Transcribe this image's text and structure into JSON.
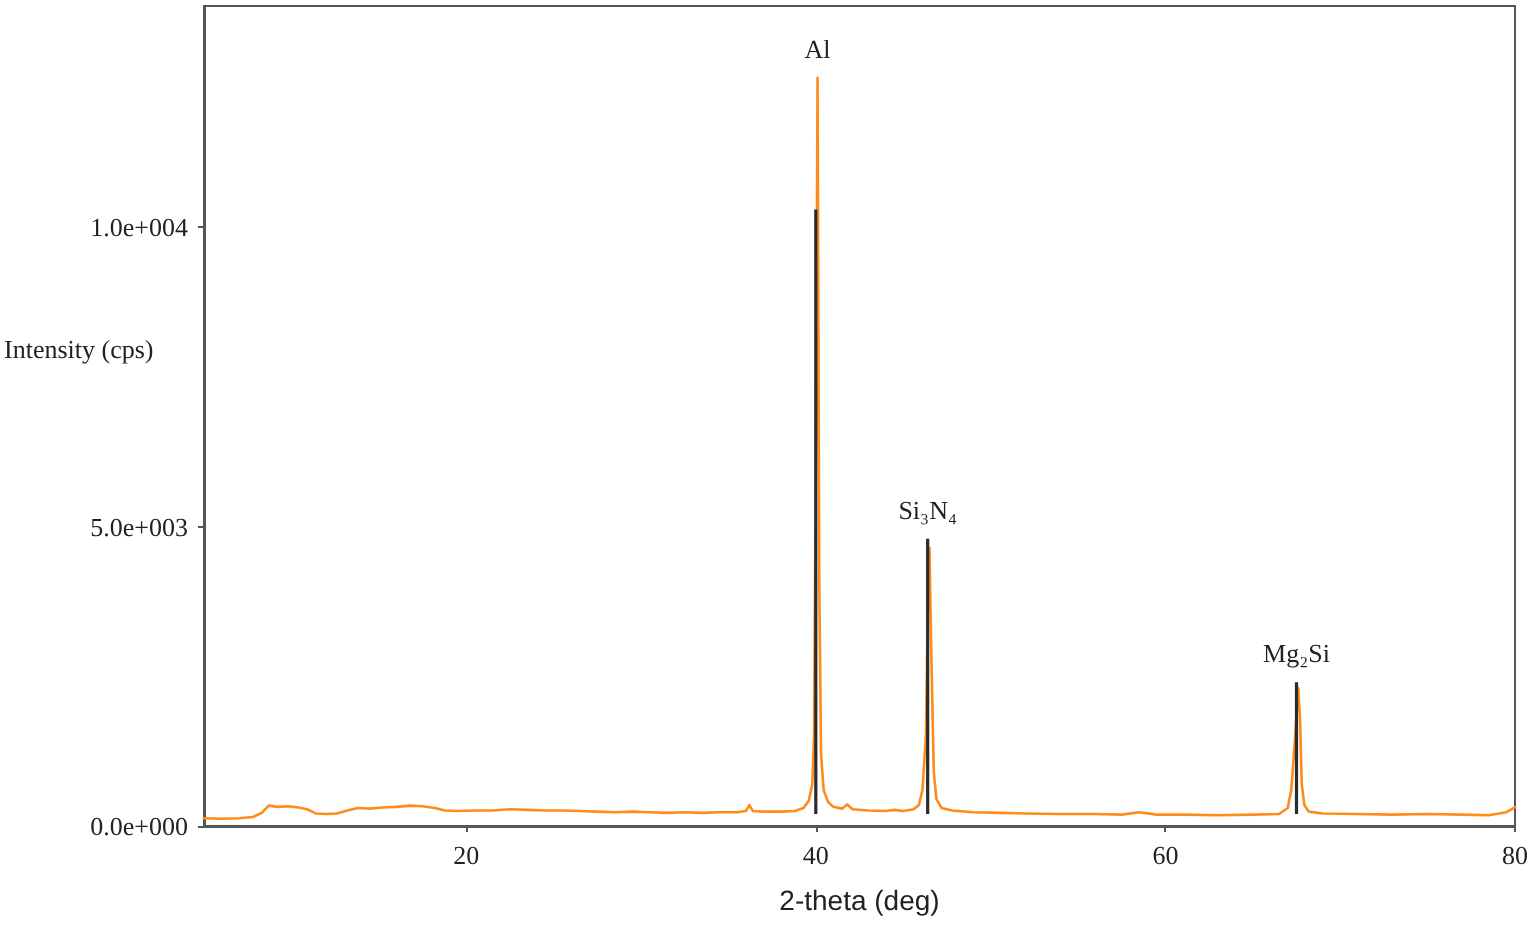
{
  "chart_data": {
    "type": "line",
    "xlabel": "2-theta (deg)",
    "ylabel": "Intensity (cps)",
    "xlim": [
      5,
      80
    ],
    "xticks": [
      20,
      40,
      60,
      80
    ],
    "ylim": [
      0,
      13700
    ],
    "yticks": [
      {
        "value": 0,
        "label": "0.0e+000"
      },
      {
        "value": 5000,
        "label": "5.0e+003"
      },
      {
        "value": 10000,
        "label": "1.0e+004"
      }
    ],
    "marker": "none",
    "series": [
      {
        "color": "#ff8c1a",
        "x": [
          5.0,
          6.0,
          7.0,
          7.8,
          8.3,
          8.7,
          9.2,
          9.8,
          10.4,
          10.9,
          11.4,
          12.0,
          12.6,
          13.2,
          13.8,
          14.5,
          15.2,
          16.0,
          16.8,
          17.5,
          18.2,
          18.8,
          19.5,
          20.5,
          21.5,
          22.5,
          23.5,
          24.5,
          25.5,
          26.5,
          27.5,
          28.5,
          29.5,
          30.5,
          31.5,
          32.5,
          33.5,
          34.5,
          35.5,
          36.0,
          36.2,
          36.4,
          37.0,
          38.0,
          38.8,
          39.3,
          39.6,
          39.8,
          39.9,
          40.0,
          40.1,
          40.2,
          40.3,
          40.45,
          40.7,
          41.0,
          41.5,
          41.8,
          42.1,
          43.0,
          44.0,
          44.5,
          45.0,
          45.6,
          45.9,
          46.1,
          46.3,
          46.4,
          46.5,
          46.6,
          46.75,
          46.9,
          47.2,
          47.8,
          49.0,
          50.5,
          52.0,
          54.0,
          56.0,
          57.5,
          58.5,
          59.5,
          61.0,
          63.0,
          65.0,
          66.5,
          67.0,
          67.2,
          67.4,
          67.6,
          67.7,
          67.8,
          67.95,
          68.2,
          69.0,
          71.0,
          73.0,
          75.0,
          77.0,
          78.5,
          79.5,
          80.0
        ],
        "values": [
          130,
          120,
          130,
          150,
          220,
          340,
          320,
          330,
          310,
          280,
          210,
          200,
          210,
          260,
          300,
          290,
          310,
          320,
          340,
          330,
          300,
          260,
          250,
          260,
          260,
          280,
          270,
          260,
          260,
          250,
          240,
          230,
          240,
          230,
          220,
          230,
          220,
          230,
          230,
          250,
          350,
          250,
          240,
          240,
          250,
          300,
          420,
          700,
          1500,
          6000,
          12500,
          4000,
          1200,
          600,
          400,
          320,
          290,
          360,
          280,
          260,
          250,
          270,
          250,
          280,
          350,
          600,
          1500,
          3500,
          4650,
          3000,
          900,
          450,
          300,
          260,
          230,
          220,
          210,
          200,
          200,
          190,
          230,
          190,
          190,
          180,
          190,
          200,
          300,
          600,
          1400,
          2300,
          1800,
          700,
          350,
          240,
          210,
          200,
          190,
          200,
          190,
          180,
          230,
          310
        ]
      },
      {
        "type": "bar",
        "color": "#2b2b2b",
        "x": [
          40.0,
          46.4,
          67.5
        ],
        "base": [
          200,
          200,
          200
        ],
        "values": [
          10100,
          4600,
          2200
        ]
      }
    ],
    "annotations": [
      {
        "text": "Al",
        "x": 40.1,
        "y": 12500
      },
      {
        "text": "Si₃N₄",
        "x": 46.4,
        "y": 4800
      },
      {
        "text": "Mg₂Si",
        "x": 67.5,
        "y": 2400
      }
    ]
  }
}
